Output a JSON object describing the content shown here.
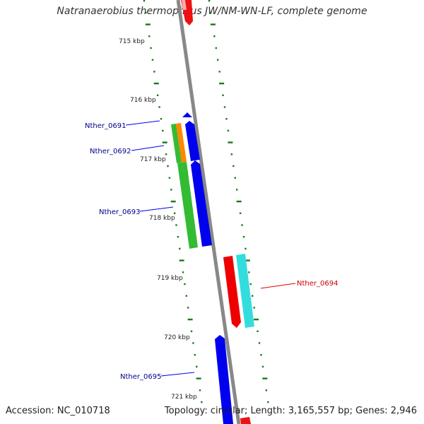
{
  "title": "Natranaerobius thermophilus JW/NM-WN-LF, complete genome",
  "footer": {
    "accession": "Accession: NC_010718",
    "summary": "Topology: circular; Length: 3,165,557 bp; Genes: 2,946"
  },
  "ticks": [
    {
      "label": "715 kbp"
    },
    {
      "label": "716 kbp"
    },
    {
      "label": "717 kbp"
    },
    {
      "label": "718 kbp"
    },
    {
      "label": "719 kbp"
    },
    {
      "label": "720 kbp"
    },
    {
      "label": "721 kbp"
    }
  ],
  "genes": [
    {
      "name": "Nther_0691",
      "color": "#00008b"
    },
    {
      "name": "Nther_0692",
      "color": "#00008b"
    },
    {
      "name": "Nther_0693",
      "color": "#00008b"
    },
    {
      "name": "Nther_0694",
      "color": "#cc0000"
    },
    {
      "name": "Nther_0695",
      "color": "#00008b"
    }
  ],
  "colors": {
    "forward_cds": "#0000ee",
    "reverse_cds": "#ee0000",
    "gene_green": "#33bb33",
    "gene_orange": "#ff8800",
    "gene_cyan": "#33dddd",
    "backbone": "#888888",
    "tick_marks": "#1a7a1a"
  }
}
